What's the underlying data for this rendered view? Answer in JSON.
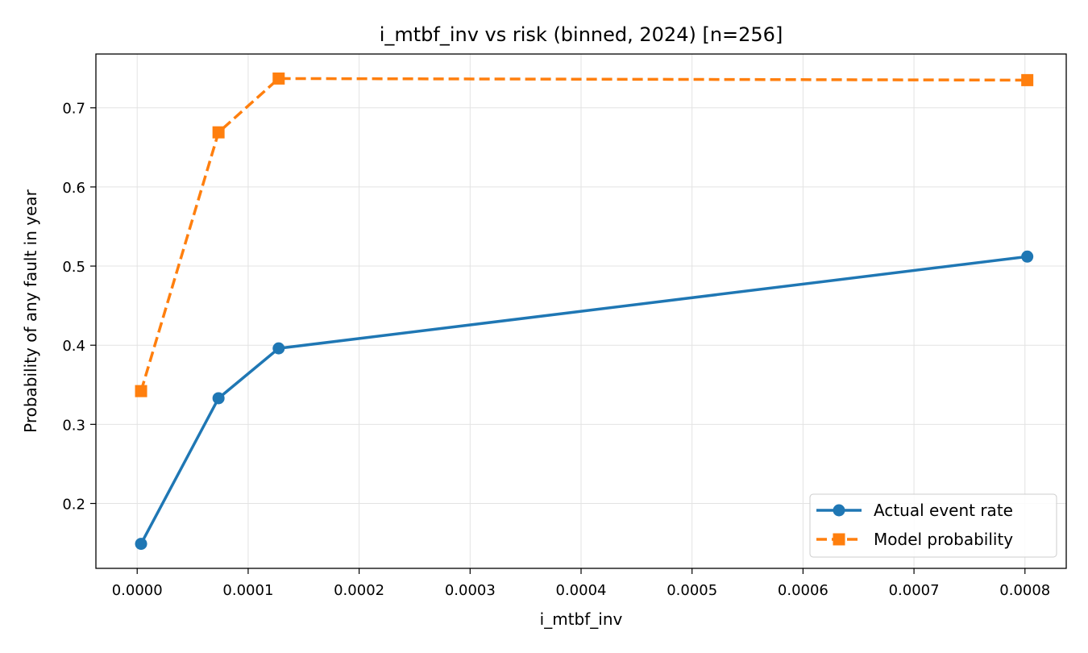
{
  "chart_data": {
    "type": "line",
    "title": "i_mtbf_inv vs risk (binned, 2024)  [n=256]",
    "xlabel": "i_mtbf_inv",
    "ylabel": "Probability of any fault in year",
    "xlim": [
      -3.72e-05,
      0.0008372
    ],
    "ylim": [
      0.118,
      0.768
    ],
    "x_ticks": [
      0.0,
      0.0001,
      0.0002,
      0.0003,
      0.0004,
      0.0005,
      0.0006,
      0.0007,
      0.0008
    ],
    "x_tick_labels": [
      "0.0000",
      "0.0001",
      "0.0002",
      "0.0003",
      "0.0004",
      "0.0005",
      "0.0006",
      "0.0007",
      "0.0008"
    ],
    "y_ticks": [
      0.2,
      0.3,
      0.4,
      0.5,
      0.6,
      0.7
    ],
    "y_tick_labels": [
      "0.2",
      "0.3",
      "0.4",
      "0.5",
      "0.6",
      "0.7"
    ],
    "grid": true,
    "legend_position": "lower-right",
    "series": [
      {
        "name": "Actual event rate",
        "color": "#1f77b4",
        "marker": "circle",
        "linestyle": "solid",
        "x": [
          3.5e-06,
          7.33e-05,
          0.0001275,
          0.0008021
        ],
        "values": [
          0.149,
          0.333,
          0.396,
          0.512
        ]
      },
      {
        "name": "Model probability",
        "color": "#ff7f0e",
        "marker": "square",
        "linestyle": "dashed",
        "x": [
          3.5e-06,
          7.33e-05,
          0.0001275,
          0.0008021
        ],
        "values": [
          0.342,
          0.669,
          0.737,
          0.735
        ]
      }
    ]
  }
}
